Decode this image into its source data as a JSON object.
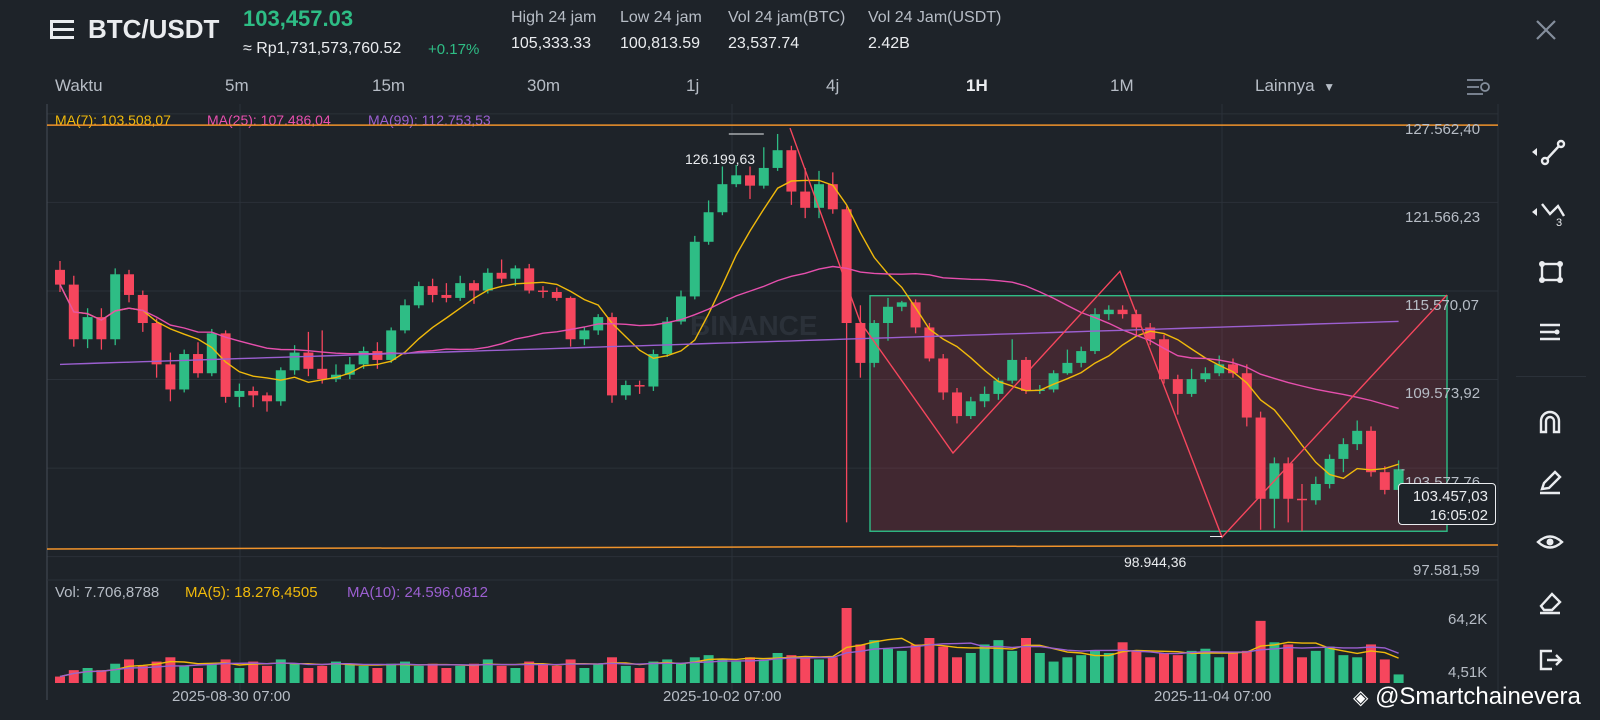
{
  "header": {
    "pair": "BTC/USDT",
    "price": "103,457.03",
    "price_idr": "≈ Rp1,731,573,760.52",
    "change": "+0.17%",
    "stats": [
      {
        "label": "High 24 jam",
        "value": "105,333.33"
      },
      {
        "label": "Low 24 jam",
        "value": "100,813.59"
      },
      {
        "label": "Vol 24 jam(BTC)",
        "value": "23,537.74"
      },
      {
        "label": "Vol 24 Jam(USDT)",
        "value": "2.42B"
      }
    ],
    "close_icon": "close-icon",
    "menu_icon": "menu-icon"
  },
  "timeframes": {
    "label": "Waktu",
    "items": [
      "5m",
      "15m",
      "30m",
      "1j",
      "4j",
      "1H",
      "1M"
    ],
    "active": "1H",
    "more": "Lainnya"
  },
  "indicators": {
    "ma7": "MA(7): 103.508,07",
    "ma25": "MA(25): 107.486,04",
    "ma99": "MA(99): 112.753,53",
    "vol": "Vol: 7.706,8788",
    "vma5": "MA(5): 18.276,4505",
    "vma10": "MA(10): 24.596,0812"
  },
  "colors": {
    "up": "#2ebd85",
    "down": "#f6465d",
    "ma7": "#f0b90b",
    "ma25": "#e64fad",
    "ma99": "#9b5fd0",
    "hline": "#f0932b",
    "rect": "#2ebd85",
    "pattern": "#f6465d",
    "background": "#1e2329"
  },
  "chart_data": {
    "type": "candlestick",
    "ylim": [
      96000,
      128500
    ],
    "price_axis_labels": [
      "127.562,40",
      "121.566,23",
      "115.570,07",
      "109.573,92",
      "103.577,76",
      "97.581,59"
    ],
    "volume_axis_labels": [
      "64,2K",
      "4,51K"
    ],
    "time_labels": [
      "2025-08-30 07:00",
      "2025-10-02 07:00",
      "2025-11-04 07:00"
    ],
    "high_annotation": "126.199,63",
    "low_annotation": "98.944,36",
    "current_price": "103.457,03",
    "countdown": "16:05:02",
    "horizontal_lines": [
      126800,
      98100
    ],
    "rectangle": {
      "top": 115250,
      "bottom": 99300
    },
    "candles": [
      [
        117000,
        116000,
        117600,
        115500
      ],
      [
        116000,
        112300,
        116600,
        111800
      ],
      [
        112300,
        113800,
        114400,
        111700
      ],
      [
        113800,
        112300,
        114400,
        111600
      ],
      [
        112300,
        116700,
        117100,
        111900
      ],
      [
        116700,
        115300,
        117000,
        114800
      ],
      [
        115300,
        113400,
        115600,
        112800
      ],
      [
        113400,
        110600,
        113700,
        109700
      ],
      [
        110600,
        108900,
        111400,
        108100
      ],
      [
        108900,
        111300,
        111600,
        108700
      ],
      [
        111300,
        110000,
        112100,
        109700
      ],
      [
        110000,
        112700,
        113000,
        109800
      ],
      [
        112700,
        108400,
        112900,
        108000
      ],
      [
        108400,
        108800,
        109300,
        107700
      ],
      [
        108800,
        108500,
        109100,
        107700
      ],
      [
        108500,
        108100,
        108700,
        107400
      ],
      [
        108100,
        110200,
        110400,
        107800
      ],
      [
        110200,
        111400,
        111900,
        109900
      ],
      [
        111400,
        110300,
        112800,
        109800
      ],
      [
        110300,
        109600,
        112900,
        109300
      ],
      [
        109600,
        109900,
        110600,
        109400
      ],
      [
        109900,
        110600,
        111100,
        109600
      ],
      [
        110600,
        111500,
        111800,
        110300
      ],
      [
        111500,
        110900,
        112100,
        110300
      ],
      [
        110900,
        112900,
        113100,
        110700
      ],
      [
        112900,
        114600,
        115000,
        112700
      ],
      [
        114600,
        115900,
        116200,
        114400
      ],
      [
        115900,
        115300,
        116400,
        114800
      ],
      [
        115300,
        115100,
        116100,
        114800
      ],
      [
        115100,
        116100,
        116600,
        114900
      ],
      [
        116100,
        115600,
        116300,
        114700
      ],
      [
        115600,
        116800,
        117100,
        115400
      ],
      [
        116800,
        116400,
        117700,
        116100
      ],
      [
        116400,
        117100,
        117300,
        115900
      ],
      [
        117100,
        115600,
        117400,
        115400
      ],
      [
        115600,
        115500,
        115900,
        115100
      ],
      [
        115500,
        115100,
        115800,
        114900
      ],
      [
        115100,
        112300,
        115200,
        111800
      ],
      [
        112300,
        112900,
        113100,
        111900
      ],
      [
        112900,
        113800,
        114000,
        112600
      ],
      [
        113800,
        108500,
        114100,
        108000
      ],
      [
        108500,
        109200,
        109500,
        108200
      ],
      [
        109200,
        109100,
        109500,
        108600
      ],
      [
        109100,
        111300,
        111600,
        108800
      ],
      [
        111300,
        113500,
        113800,
        111100
      ],
      [
        113500,
        115200,
        115600,
        113300
      ],
      [
        115200,
        118900,
        119300,
        115000
      ],
      [
        118900,
        120900,
        121700,
        118700
      ],
      [
        120900,
        122800,
        124000,
        120700
      ],
      [
        122800,
        123400,
        124100,
        122600
      ],
      [
        123400,
        122700,
        124000,
        121800
      ],
      [
        122700,
        123900,
        125300,
        122500
      ],
      [
        123900,
        125100,
        126200,
        123700
      ],
      [
        125100,
        122300,
        125400,
        121400
      ],
      [
        122300,
        121200,
        123900,
        120500
      ],
      [
        121200,
        122800,
        123700,
        120500
      ],
      [
        122800,
        121100,
        123600,
        120800
      ],
      [
        121100,
        113400,
        121300,
        99900
      ],
      [
        113400,
        110700,
        114600,
        109700
      ],
      [
        110700,
        113400,
        113600,
        110400
      ],
      [
        113400,
        114500,
        115100,
        112200
      ],
      [
        114500,
        114800,
        114900,
        114200
      ],
      [
        114800,
        113100,
        115000,
        112700
      ],
      [
        113100,
        111000,
        113400,
        110800
      ],
      [
        111000,
        108700,
        111300,
        108200
      ],
      [
        108700,
        107100,
        109000,
        106600
      ],
      [
        107100,
        108100,
        108400,
        106900
      ],
      [
        108100,
        108600,
        109100,
        107700
      ],
      [
        108600,
        109500,
        109700,
        108200
      ],
      [
        109500,
        110900,
        112300,
        109300
      ],
      [
        110900,
        108800,
        111100,
        108600
      ],
      [
        108800,
        108900,
        109200,
        108600
      ],
      [
        108900,
        110000,
        110200,
        108700
      ],
      [
        110000,
        110700,
        111600,
        109900
      ],
      [
        110700,
        111500,
        111800,
        110400
      ],
      [
        111500,
        114000,
        114400,
        111300
      ],
      [
        114000,
        114300,
        114600,
        113600
      ],
      [
        114300,
        114000,
        114600,
        113700
      ],
      [
        114000,
        113100,
        114300,
        112600
      ],
      [
        113100,
        112300,
        113400,
        111900
      ],
      [
        112300,
        109600,
        112600,
        109300
      ],
      [
        109600,
        108600,
        109900,
        107200
      ],
      [
        108600,
        109600,
        110300,
        108400
      ],
      [
        109600,
        110000,
        110400,
        109400
      ],
      [
        110000,
        110600,
        111200,
        109800
      ],
      [
        110600,
        110000,
        111000,
        109700
      ],
      [
        110000,
        107000,
        110600,
        106400
      ],
      [
        107000,
        101500,
        107400,
        99400
      ],
      [
        101500,
        103900,
        104300,
        99500
      ],
      [
        103900,
        101500,
        104300,
        99900
      ],
      [
        101500,
        101400,
        102500,
        99300
      ],
      [
        101400,
        102500,
        103000,
        101100
      ],
      [
        102500,
        104200,
        104500,
        102200
      ],
      [
        104200,
        105200,
        105600,
        103300
      ],
      [
        105200,
        106100,
        106800,
        104800
      ],
      [
        106100,
        103300,
        106400,
        103000
      ],
      [
        103300,
        102100,
        103700,
        101800
      ],
      [
        102100,
        103500,
        104100,
        101700
      ]
    ],
    "volumes": [
      3,
      6,
      7,
      6,
      9,
      11,
      8,
      10,
      12,
      8,
      7,
      9,
      11,
      7,
      10,
      8,
      11,
      9,
      7,
      8,
      10,
      9,
      8,
      7,
      9,
      10,
      8,
      9,
      7,
      8,
      9,
      11,
      8,
      7,
      10,
      9,
      8,
      11,
      7,
      9,
      12,
      8,
      7,
      10,
      11,
      9,
      12,
      13,
      11,
      10,
      12,
      11,
      14,
      13,
      12,
      11,
      12,
      35,
      18,
      20,
      16,
      15,
      18,
      21,
      17,
      12,
      14,
      18,
      20,
      15,
      21,
      14,
      10,
      12,
      13,
      15,
      14,
      19,
      15,
      12,
      14,
      13,
      15,
      16,
      12,
      14,
      15,
      29,
      19,
      18,
      12,
      15,
      17,
      13,
      12,
      18,
      11,
      4
    ],
    "volume_max": 35
  },
  "watermark": "BINANCE",
  "credit": "@Smartchainevera"
}
